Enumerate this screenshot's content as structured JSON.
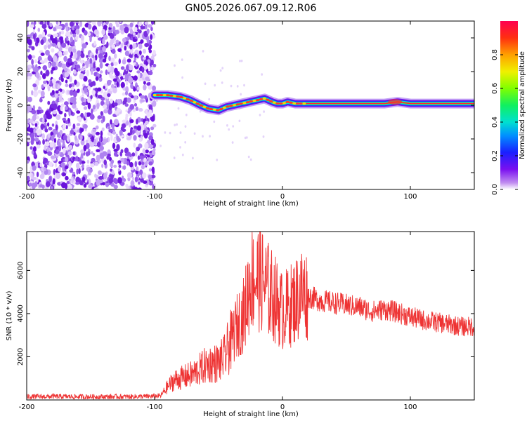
{
  "title": "GN05.2026.067.09.12.R06",
  "colors": {
    "snr_line": "#ee3333",
    "scatter": "#7a2ee0",
    "band_core": "#ff2a2a"
  },
  "chart_data": [
    {
      "type": "heatmap",
      "name": "spectrogram",
      "xlabel": "Height of straight line (km)",
      "ylabel": "Frequency (Hz)",
      "xlim": [
        -200,
        150
      ],
      "ylim": [
        -50,
        50
      ],
      "xticks": [
        -200,
        -100,
        0,
        100
      ],
      "xtick_labels": [
        "-200",
        "-100",
        "0",
        "100"
      ],
      "yticks": [
        -40,
        -20,
        0,
        20,
        40
      ],
      "ytick_labels": [
        "-40",
        "-20",
        "0",
        "20",
        "40"
      ],
      "noise_region_x": [
        -200,
        -100
      ],
      "band_freq": {
        "x": [
          -100,
          -90,
          -80,
          -72,
          -64,
          -58,
          -50,
          -44,
          -38,
          -32,
          -26,
          -20,
          -14,
          -8,
          -4,
          0,
          4,
          10,
          20,
          40,
          60,
          80,
          90,
          100,
          120,
          150
        ],
        "y": [
          6,
          6,
          5,
          3,
          0,
          -2,
          -3,
          -1,
          0,
          1,
          2,
          3,
          4,
          2,
          1,
          1,
          2,
          1,
          1,
          1,
          1,
          1,
          2,
          1,
          1,
          1
        ]
      },
      "colorbar": {
        "label": "Normalized spectral amplitude",
        "range": [
          0,
          1
        ],
        "ticks": [
          0.0,
          0.2,
          0.4,
          0.6,
          0.8
        ],
        "tick_labels": [
          "0.0",
          "0.2",
          "0.4",
          "0.6",
          "0.8"
        ]
      }
    },
    {
      "type": "line",
      "name": "snr",
      "xlabel": "Height of straight line (km)",
      "ylabel": "SNR (10 * v/v)",
      "xlim": [
        -200,
        150
      ],
      "ylim": [
        0,
        7800
      ],
      "xticks": [
        -200,
        -100,
        0,
        100
      ],
      "xtick_labels": [
        "-200",
        "-100",
        "0",
        "100"
      ],
      "yticks": [
        2000,
        4000,
        6000
      ],
      "ytick_labels": [
        "2000",
        "4000",
        "6000"
      ],
      "series": [
        {
          "name": "SNR",
          "x": [
            -200,
            -180,
            -160,
            -140,
            -120,
            -100,
            -95,
            -90,
            -85,
            -80,
            -75,
            -70,
            -65,
            -60,
            -55,
            -50,
            -45,
            -40,
            -35,
            -30,
            -25,
            -20,
            -15,
            -10,
            -5,
            0,
            5,
            10,
            15,
            20,
            30,
            40,
            50,
            60,
            70,
            80,
            90,
            100,
            110,
            120,
            130,
            140,
            150
          ],
          "y": [
            150,
            160,
            150,
            150,
            150,
            170,
            200,
            600,
            900,
            1000,
            1100,
            1200,
            1400,
            1600,
            1700,
            1700,
            2000,
            2800,
            3500,
            4000,
            5600,
            5700,
            5500,
            5000,
            4600,
            4100,
            4300,
            4600,
            5000,
            4800,
            4600,
            4500,
            4400,
            4300,
            4100,
            4200,
            4050,
            3850,
            3700,
            3600,
            3500,
            3400,
            3400
          ]
        }
      ]
    }
  ]
}
